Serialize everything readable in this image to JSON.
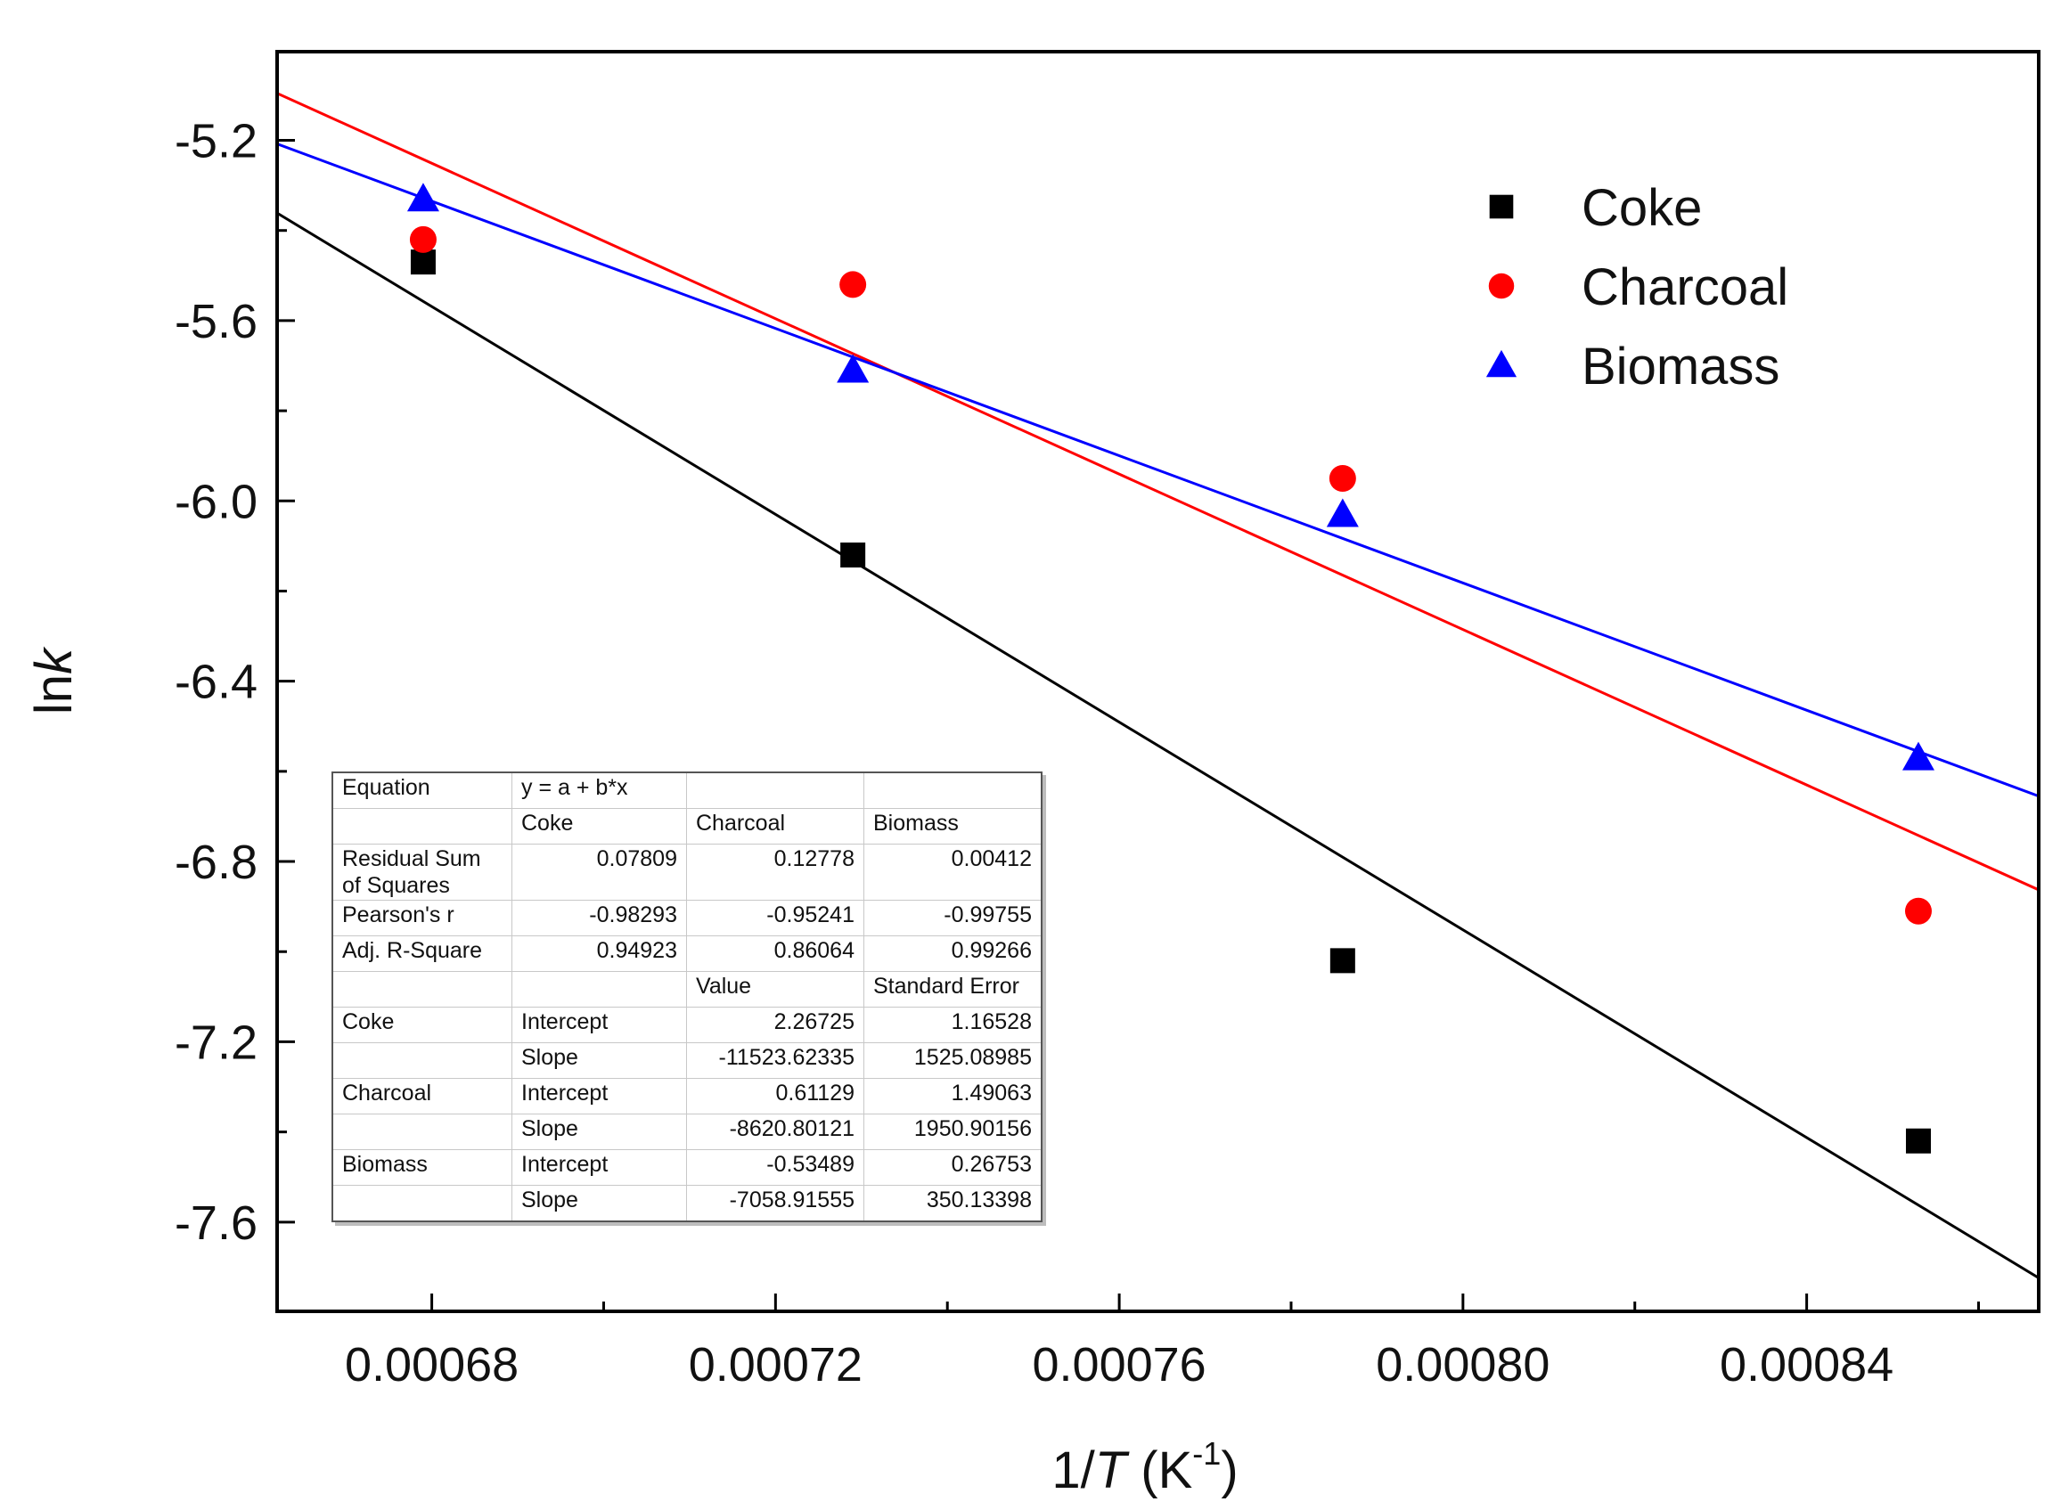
{
  "chart_data": {
    "type": "scatter",
    "title": "",
    "xlabel": "1/T (K⁻¹)",
    "xlabel_parts": {
      "prefix": "1/",
      "var": "T",
      "unit": " (K",
      "sup": "-1",
      "suffix": ")"
    },
    "ylabel": "lnk",
    "ylabel_parts": {
      "prefix": "ln",
      "var": "k"
    },
    "xlim": [
      0.000662,
      0.000867
    ],
    "ylim": [
      -7.798,
      -5.0033
    ],
    "xticks": [
      0.00068,
      0.00072,
      0.00076,
      0.0008,
      0.00084
    ],
    "xtick_labels": [
      "0.00068",
      "0.00072",
      "0.00076",
      "0.00080",
      "0.00084"
    ],
    "yticks": [
      -5.2,
      -5.6,
      -6.0,
      -6.4,
      -6.8,
      -7.2,
      -7.6
    ],
    "ytick_labels": [
      "-5.2",
      "-5.6",
      "-6.0",
      "-6.4",
      "-6.8",
      "-7.2",
      "-7.6"
    ],
    "grid": false,
    "legend_position": "top-right",
    "series": [
      {
        "name": "Coke",
        "color": "#000000",
        "marker": "square",
        "x": [
          0.000679,
          0.000729,
          0.000786,
          0.000853
        ],
        "y": [
          -5.47,
          -6.12,
          -7.02,
          -7.42
        ],
        "fit": {
          "intercept": 2.26725,
          "slope": -11523.62335
        }
      },
      {
        "name": "Charcoal",
        "color": "#ff0000",
        "marker": "circle",
        "x": [
          0.000679,
          0.000729,
          0.000786,
          0.000853
        ],
        "y": [
          -5.42,
          -5.52,
          -5.95,
          -6.91
        ],
        "fit": {
          "intercept": 0.61129,
          "slope": -8620.80121
        }
      },
      {
        "name": "Biomass",
        "color": "#0000ff",
        "marker": "triangle",
        "x": [
          0.000679,
          0.000729,
          0.000786,
          0.000853
        ],
        "y": [
          -5.33,
          -5.71,
          -6.03,
          -6.57
        ],
        "fit": {
          "intercept": -0.53489,
          "slope": -7058.91555
        }
      }
    ]
  },
  "fit_table": {
    "rows": [
      [
        "Equation",
        "y = a + b*x",
        "",
        ""
      ],
      [
        "",
        "Coke",
        "Charcoal",
        "Biomass"
      ],
      [
        "Residual Sum of Squares",
        "0.07809",
        "0.12778",
        "0.00412"
      ],
      [
        "Pearson's r",
        "-0.98293",
        "-0.95241",
        "-0.99755"
      ],
      [
        "Adj. R-Square",
        "0.94923",
        "0.86064",
        "0.99266"
      ],
      [
        "",
        "",
        "Value",
        "Standard Error"
      ],
      [
        "Coke",
        "Intercept",
        "2.26725",
        "1.16528"
      ],
      [
        "",
        "Slope",
        "-11523.62335",
        "1525.08985"
      ],
      [
        "Charcoal",
        "Intercept",
        "0.61129",
        "1.49063"
      ],
      [
        "",
        "Slope",
        "-8620.80121",
        "1950.90156"
      ],
      [
        "Biomass",
        "Intercept",
        "-0.53489",
        "0.26753"
      ],
      [
        "",
        "Slope",
        "-7058.91555",
        "350.13398"
      ]
    ]
  }
}
